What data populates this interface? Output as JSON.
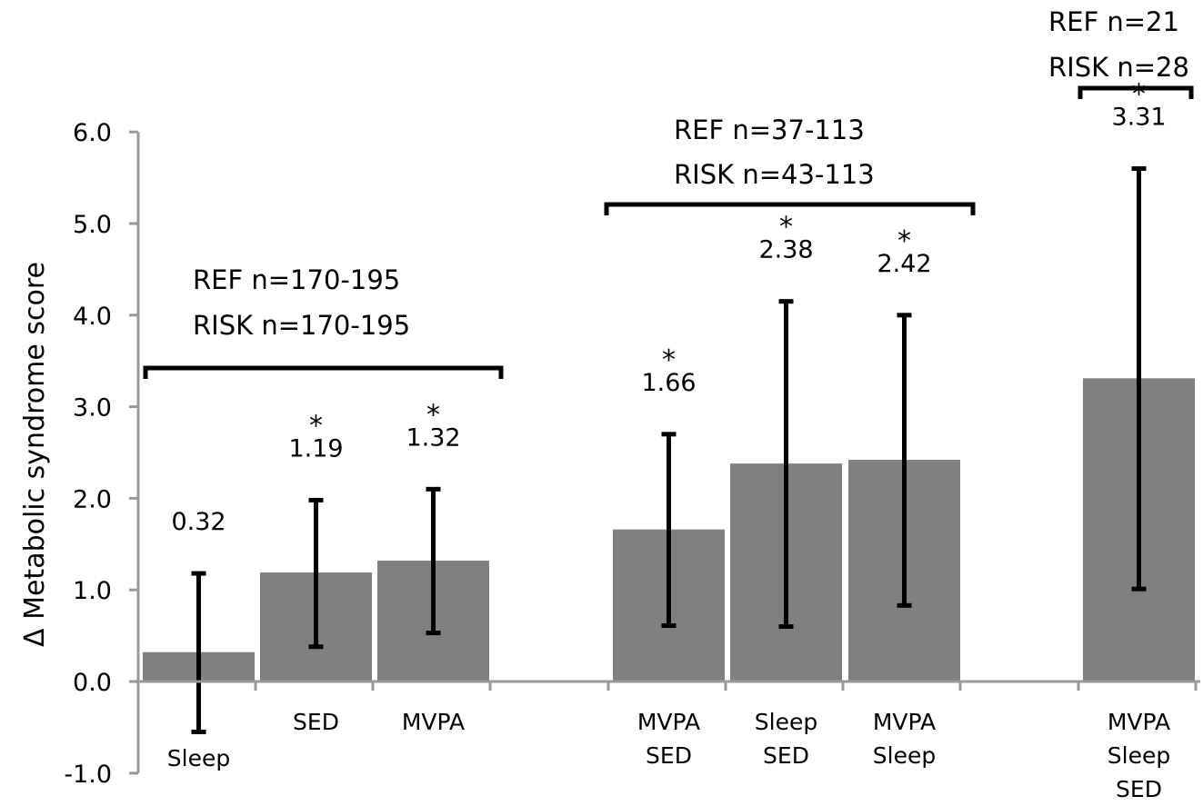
{
  "chart_data": {
    "type": "bar",
    "ylabel": "Δ Metabolic syndrome score",
    "ylim": [
      -1.0,
      6.0
    ],
    "yticks": [
      "-1.0",
      "0.0",
      "1.0",
      "2.0",
      "3.0",
      "4.0",
      "5.0",
      "6.0"
    ],
    "grid": false,
    "categories": [
      {
        "lines": [
          "Sleep"
        ],
        "value": 0.32,
        "label": "0.32",
        "err_low": -0.55,
        "err_high": 1.18,
        "significant": false
      },
      {
        "lines": [
          "SED"
        ],
        "value": 1.19,
        "label": "1.19",
        "err_low": 0.38,
        "err_high": 1.98,
        "significant": true
      },
      {
        "lines": [
          "MVPA"
        ],
        "value": 1.32,
        "label": "1.32",
        "err_low": 0.53,
        "err_high": 2.1,
        "significant": true
      },
      {
        "lines": [
          "MVPA",
          "SED"
        ],
        "value": 1.66,
        "label": "1.66",
        "err_low": 0.61,
        "err_high": 2.7,
        "significant": true
      },
      {
        "lines": [
          "Sleep",
          "SED"
        ],
        "value": 2.38,
        "label": "2.38",
        "err_low": 0.6,
        "err_high": 4.15,
        "significant": true
      },
      {
        "lines": [
          "MVPA",
          "Sleep"
        ],
        "value": 2.42,
        "label": "2.42",
        "err_low": 0.83,
        "err_high": 4.0,
        "significant": true
      },
      {
        "lines": [
          "MVPA",
          "Sleep",
          "SED"
        ],
        "value": 3.31,
        "label": "3.31",
        "err_low": 1.01,
        "err_high": 5.6,
        "significant": true
      }
    ],
    "significance_marker": "*",
    "groups": [
      {
        "lines": [
          "REF n=170-195",
          "RISK n=170-195"
        ]
      },
      {
        "lines": [
          "REF n=37-113",
          "RISK n=43-113"
        ]
      },
      {
        "lines": [
          "REF n=21",
          "RISK n=28"
        ]
      }
    ],
    "colors": {
      "bar": "#808080",
      "axis": "#999999",
      "error": "#000000"
    }
  }
}
